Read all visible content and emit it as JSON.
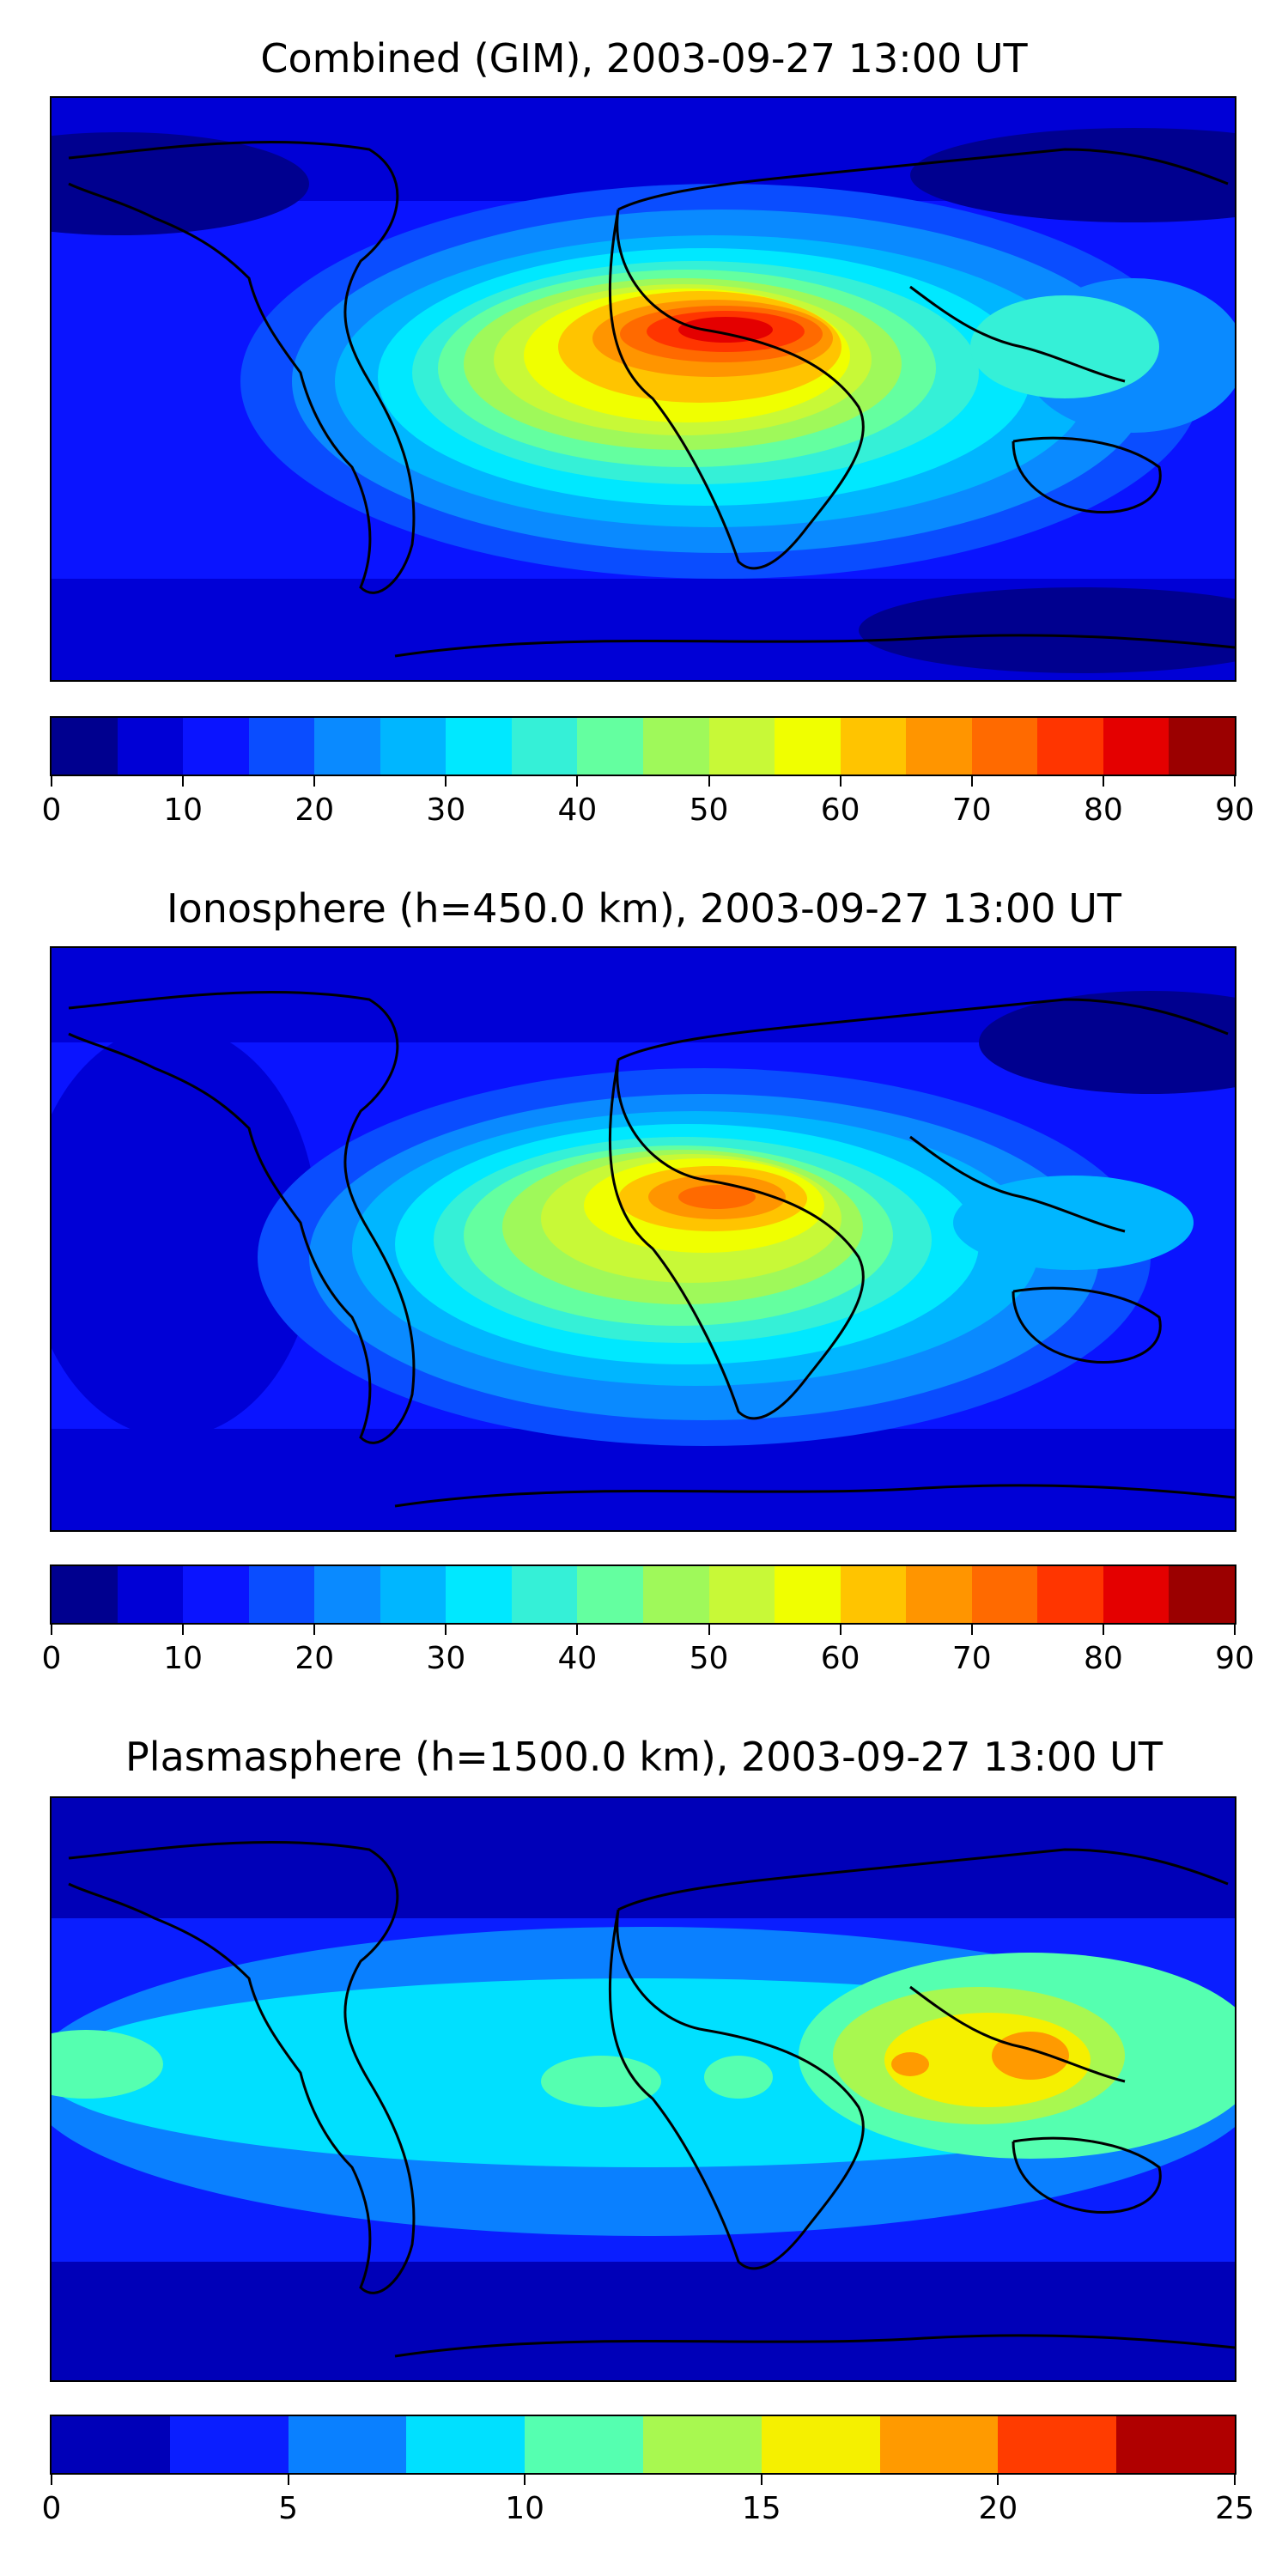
{
  "maps": [
    {
      "id": "combined",
      "title": "Combined (GIM), 2003-09-27 13:00 UT",
      "colorbar": {
        "ticks": [
          "0",
          "10",
          "20",
          "30",
          "40",
          "50",
          "60",
          "70",
          "80",
          "90"
        ],
        "boundaries": [
          0,
          5,
          10,
          15,
          20,
          25,
          30,
          35,
          40,
          45,
          50,
          55,
          60,
          65,
          70,
          75,
          80,
          85,
          90
        ],
        "colors": [
          "#00008f",
          "#0000d6",
          "#0a14ff",
          "#0a4dff",
          "#0a8aff",
          "#00b6ff",
          "#00e8ff",
          "#35f0d7",
          "#64ffa0",
          "#9ff95a",
          "#c8f937",
          "#f0ff00",
          "#ffc400",
          "#ff9500",
          "#ff6a00",
          "#ff3500",
          "#e40000",
          "#9b0000"
        ]
      }
    },
    {
      "id": "ionosphere",
      "title": "Ionosphere  (h=450.0 km), 2003-09-27 13:00 UT",
      "colorbar": {
        "ticks": [
          "0",
          "10",
          "20",
          "30",
          "40",
          "50",
          "60",
          "70",
          "80",
          "90"
        ],
        "boundaries": [
          0,
          5,
          10,
          15,
          20,
          25,
          30,
          35,
          40,
          45,
          50,
          55,
          60,
          65,
          70,
          75,
          80,
          85,
          90
        ],
        "colors": [
          "#00008f",
          "#0000d6",
          "#0a14ff",
          "#0a4dff",
          "#0a8aff",
          "#00b6ff",
          "#00e8ff",
          "#35f0d7",
          "#64ffa0",
          "#9ff95a",
          "#c8f937",
          "#f0ff00",
          "#ffc400",
          "#ff9500",
          "#ff6a00",
          "#ff3500",
          "#e40000",
          "#9b0000"
        ]
      }
    },
    {
      "id": "plasmasphere",
      "title": "Plasmasphere (h=1500.0 km), 2003-09-27 13:00 UT",
      "colorbar": {
        "ticks": [
          "0",
          "5",
          "10",
          "15",
          "20",
          "25"
        ],
        "boundaries": [
          0,
          2.5,
          5,
          7.5,
          10,
          12.5,
          15,
          17.5,
          20,
          22.5,
          25
        ],
        "colors": [
          "#0000b8",
          "#0a1eff",
          "#0a80ff",
          "#00e0ff",
          "#55ffb0",
          "#a8f850",
          "#f5f000",
          "#ff9a00",
          "#ff3c00",
          "#b00000"
        ]
      }
    }
  ]
}
